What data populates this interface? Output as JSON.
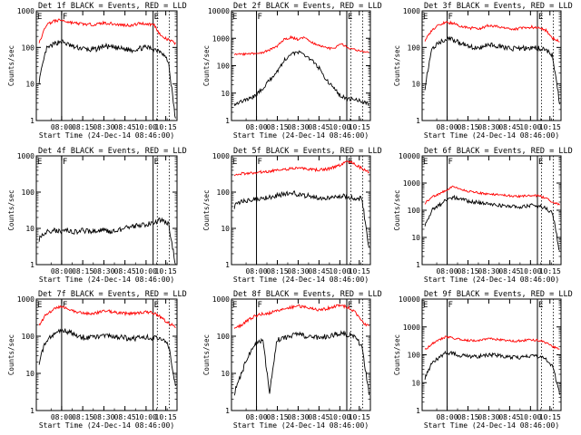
{
  "shared": {
    "ylabel": "Counts/sec",
    "xlabel": "Start Time (24-Dec-14 08:46:00)",
    "legend_text": "BLACK = Events, RED = LLD",
    "x_tick_labels": [
      "08:00",
      "08:15",
      "08:30",
      "08:45",
      "10:00",
      "10:15"
    ],
    "series_colors": {
      "events": "#000000",
      "lld": "#ff0000"
    },
    "y_scale": "log"
  },
  "chart_data": [
    {
      "type": "line",
      "title": "Det 1f BLACK = Events, RED = LLD",
      "ylim": [
        1,
        1000
      ],
      "yticks": [
        "1",
        "10",
        "100",
        "1000"
      ],
      "flags": [
        "E",
        "F",
        "E"
      ],
      "series": [
        {
          "name": "Events",
          "values": [
            12,
            90,
            120,
            150,
            120,
            100,
            95,
            85,
            90,
            110,
            100,
            95,
            90,
            85,
            95,
            100,
            90,
            80,
            40,
            1
          ]
        },
        {
          "name": "LLD",
          "values": [
            130,
            420,
            520,
            560,
            500,
            460,
            440,
            420,
            430,
            470,
            450,
            420,
            410,
            400,
            460,
            440,
            420,
            200,
            160,
            130
          ]
        }
      ]
    },
    {
      "type": "line",
      "title": "Det 2f BLACK = Events, RED = LLD",
      "ylim": [
        1,
        10000
      ],
      "yticks": [
        "1",
        "10",
        "100",
        "1000",
        "10000"
      ],
      "flags": [
        "E",
        "F",
        "E"
      ],
      "series": [
        {
          "name": "Events",
          "values": [
            4,
            5,
            6,
            8,
            15,
            30,
            60,
            150,
            280,
            300,
            250,
            150,
            80,
            30,
            15,
            8,
            6,
            6,
            5,
            4
          ]
        },
        {
          "name": "LLD",
          "values": [
            250,
            260,
            270,
            280,
            300,
            380,
            500,
            900,
            1100,
            900,
            1100,
            700,
            550,
            450,
            400,
            650,
            450,
            380,
            330,
            300
          ]
        }
      ]
    },
    {
      "type": "line",
      "title": "Det 3f BLACK = Events, RED = LLD",
      "ylim": [
        1,
        1000
      ],
      "yticks": [
        "1",
        "10",
        "100",
        "1000"
      ],
      "flags": [
        "E",
        "F",
        "E"
      ],
      "series": [
        {
          "name": "Events",
          "values": [
            8,
            100,
            130,
            180,
            160,
            130,
            110,
            100,
            100,
            120,
            110,
            100,
            95,
            90,
            95,
            100,
            95,
            90,
            60,
            3
          ]
        },
        {
          "name": "LLD",
          "values": [
            150,
            300,
            400,
            500,
            450,
            380,
            350,
            330,
            340,
            400,
            380,
            350,
            330,
            320,
            340,
            360,
            350,
            300,
            180,
            150
          ]
        }
      ]
    },
    {
      "type": "line",
      "title": "Det 4f BLACK = Events, RED = LLD",
      "ylim": [
        1,
        1000
      ],
      "yticks": [
        "1",
        "10",
        "100",
        "1000"
      ],
      "flags": [
        "E",
        "F",
        "E"
      ],
      "series": [
        {
          "name": "Events",
          "values": [
            5,
            8,
            9,
            8,
            9,
            8,
            9,
            8,
            9,
            9,
            8,
            9,
            10,
            11,
            12,
            13,
            15,
            17,
            14,
            1
          ]
        },
        {
          "name": "LLD",
          "values": []
        }
      ]
    },
    {
      "type": "line",
      "title": "Det 5f BLACK = Events, RED = LLD",
      "ylim": [
        1,
        1000
      ],
      "yticks": [
        "1",
        "10",
        "100",
        "1000"
      ],
      "flags": [
        "E",
        "F",
        "E"
      ],
      "series": [
        {
          "name": "Events",
          "values": [
            40,
            55,
            60,
            65,
            70,
            75,
            80,
            90,
            100,
            85,
            80,
            75,
            70,
            70,
            75,
            80,
            75,
            70,
            65,
            3
          ]
        },
        {
          "name": "LLD",
          "values": [
            300,
            320,
            330,
            350,
            360,
            380,
            400,
            420,
            440,
            460,
            430,
            420,
            410,
            430,
            480,
            560,
            700,
            600,
            450,
            350
          ]
        }
      ]
    },
    {
      "type": "line",
      "title": "Det 6f BLACK = Events, RED = LLD",
      "ylim": [
        1,
        10000
      ],
      "yticks": [
        "1",
        "10",
        "100",
        "1000",
        "10000"
      ],
      "flags": [
        "E",
        "F",
        "E"
      ],
      "series": [
        {
          "name": "Events",
          "values": [
            30,
            100,
            150,
            250,
            300,
            260,
            220,
            200,
            180,
            170,
            160,
            150,
            140,
            130,
            140,
            150,
            140,
            120,
            80,
            3
          ]
        },
        {
          "name": "LLD",
          "values": [
            180,
            300,
            400,
            550,
            750,
            600,
            500,
            450,
            420,
            400,
            380,
            360,
            340,
            320,
            340,
            360,
            340,
            280,
            200,
            160
          ]
        }
      ]
    },
    {
      "type": "line",
      "title": "Det 7f BLACK = Events, RED = LLD",
      "ylim": [
        1,
        1000
      ],
      "yticks": [
        "1",
        "10",
        "100",
        "1000"
      ],
      "flags": [
        "E",
        "F",
        "E"
      ],
      "series": [
        {
          "name": "Events",
          "values": [
            20,
            80,
            110,
            150,
            130,
            110,
            95,
            90,
            95,
            110,
            100,
            95,
            90,
            85,
            90,
            95,
            90,
            80,
            60,
            4
          ]
        },
        {
          "name": "LLD",
          "values": [
            200,
            400,
            520,
            650,
            550,
            450,
            420,
            400,
            420,
            500,
            460,
            430,
            410,
            400,
            430,
            450,
            420,
            320,
            220,
            180
          ]
        }
      ]
    },
    {
      "type": "line",
      "title": "Det 8f BLACK = Events, RED = LLD",
      "ylim": [
        1,
        1000
      ],
      "yticks": [
        "1",
        "10",
        "100",
        "1000"
      ],
      "flags": [
        "E",
        "F",
        "E"
      ],
      "series": [
        {
          "name": "Events",
          "values": [
            3,
            10,
            30,
            60,
            80,
            3,
            80,
            90,
            100,
            110,
            100,
            95,
            90,
            100,
            110,
            120,
            110,
            100,
            50,
            3
          ]
        },
        {
          "name": "LLD",
          "values": [
            150,
            200,
            280,
            350,
            400,
            420,
            500,
            550,
            600,
            650,
            600,
            550,
            500,
            550,
            620,
            680,
            600,
            450,
            250,
            180
          ]
        }
      ]
    },
    {
      "type": "line",
      "title": "Det 9f BLACK = Events, RED = LLD",
      "ylim": [
        1,
        10000
      ],
      "yticks": [
        "1",
        "10",
        "100",
        "1000",
        "10000"
      ],
      "flags": [
        "E",
        "F",
        "E"
      ],
      "series": [
        {
          "name": "Events",
          "values": [
            15,
            50,
            80,
            120,
            110,
            95,
            90,
            85,
            90,
            100,
            95,
            90,
            85,
            80,
            85,
            90,
            85,
            70,
            40,
            4
          ]
        },
        {
          "name": "LLD",
          "values": [
            150,
            250,
            350,
            450,
            400,
            360,
            330,
            320,
            330,
            380,
            360,
            340,
            320,
            310,
            330,
            350,
            330,
            280,
            200,
            160
          ]
        }
      ]
    }
  ]
}
